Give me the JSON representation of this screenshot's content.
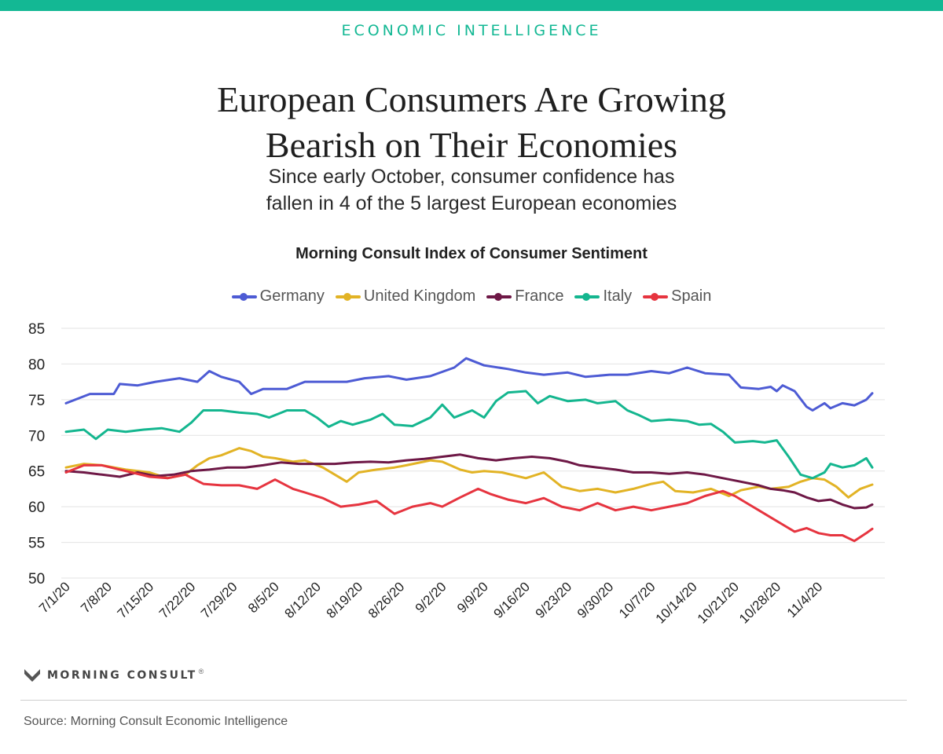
{
  "header": {
    "section_label": "ECONOMIC INTELLIGENCE",
    "title_line1": "European Consumers Are Growing",
    "title_line2": "Bearish on Their Economies",
    "subtitle_line1": "Since early October, consumer confidence has",
    "subtitle_line2": "fallen in 4 of the 5 largest European economies",
    "accent_color": "#13b894"
  },
  "chart_data": {
    "type": "line",
    "title": "Morning Consult Index of Consumer Sentiment",
    "xlabel": "",
    "ylabel": "",
    "ylim": [
      50,
      85
    ],
    "yticks": [
      50,
      55,
      60,
      65,
      70,
      75,
      80,
      85
    ],
    "grid": true,
    "legend_position": "top",
    "x_tick_labels": [
      "7/1/20",
      "7/8/20",
      "7/15/20",
      "7/22/20",
      "7/29/20",
      "8/5/20",
      "8/12/20",
      "8/19/20",
      "8/26/20",
      "9/2/20",
      "9/9/20",
      "9/16/20",
      "9/23/20",
      "9/30/20",
      "10/7/20",
      "10/14/20",
      "10/21/20",
      "10/28/20",
      "11/4/20"
    ],
    "x_start_day": 0,
    "x_end_day": 130,
    "series": [
      {
        "name": "Germany",
        "color": "#4d5bd4",
        "points": [
          [
            0,
            74.5
          ],
          [
            4,
            75.8
          ],
          [
            8,
            75.8
          ],
          [
            9,
            77.2
          ],
          [
            12,
            77.0
          ],
          [
            15,
            77.5
          ],
          [
            19,
            78.0
          ],
          [
            22,
            77.5
          ],
          [
            24,
            79.0
          ],
          [
            26,
            78.2
          ],
          [
            29,
            77.5
          ],
          [
            31,
            75.8
          ],
          [
            33,
            76.5
          ],
          [
            37,
            76.5
          ],
          [
            40,
            77.5
          ],
          [
            43,
            77.5
          ],
          [
            47,
            77.5
          ],
          [
            50,
            78.0
          ],
          [
            54,
            78.3
          ],
          [
            57,
            77.8
          ],
          [
            61,
            78.3
          ],
          [
            65,
            79.5
          ],
          [
            67,
            80.8
          ],
          [
            70,
            79.8
          ],
          [
            74,
            79.3
          ],
          [
            77,
            78.8
          ],
          [
            80,
            78.5
          ],
          [
            84,
            78.8
          ],
          [
            87,
            78.2
          ],
          [
            91,
            78.5
          ],
          [
            94,
            78.5
          ],
          [
            98,
            79.0
          ],
          [
            101,
            78.7
          ],
          [
            104,
            79.5
          ],
          [
            107,
            78.7
          ],
          [
            111,
            78.5
          ],
          [
            113,
            76.7
          ],
          [
            116,
            76.5
          ],
          [
            118,
            76.8
          ],
          [
            119,
            76.2
          ],
          [
            120,
            77.0
          ],
          [
            122,
            76.2
          ],
          [
            124,
            74.0
          ],
          [
            125,
            73.5
          ],
          [
            127,
            74.5
          ],
          [
            128,
            73.8
          ],
          [
            130,
            74.5
          ],
          [
            132,
            74.2
          ],
          [
            134,
            75.0
          ],
          [
            135,
            75.9
          ]
        ]
      },
      {
        "name": "United Kingdom",
        "color": "#e2b325",
        "points": [
          [
            0,
            65.5
          ],
          [
            3,
            66.0
          ],
          [
            6,
            65.8
          ],
          [
            10,
            65.2
          ],
          [
            14,
            64.8
          ],
          [
            17,
            64.0
          ],
          [
            20,
            64.5
          ],
          [
            22,
            65.8
          ],
          [
            24,
            66.8
          ],
          [
            26,
            67.2
          ],
          [
            29,
            68.2
          ],
          [
            31,
            67.8
          ],
          [
            33,
            67.0
          ],
          [
            35,
            66.8
          ],
          [
            38,
            66.3
          ],
          [
            40,
            66.5
          ],
          [
            43,
            65.5
          ],
          [
            47,
            63.5
          ],
          [
            49,
            64.8
          ],
          [
            52,
            65.2
          ],
          [
            55,
            65.5
          ],
          [
            57,
            65.8
          ],
          [
            61,
            66.5
          ],
          [
            63,
            66.3
          ],
          [
            66,
            65.2
          ],
          [
            68,
            64.8
          ],
          [
            70,
            65.0
          ],
          [
            73,
            64.8
          ],
          [
            77,
            64.0
          ],
          [
            80,
            64.8
          ],
          [
            83,
            62.8
          ],
          [
            86,
            62.2
          ],
          [
            89,
            62.5
          ],
          [
            92,
            62.0
          ],
          [
            95,
            62.5
          ],
          [
            98,
            63.2
          ],
          [
            100,
            63.5
          ],
          [
            102,
            62.2
          ],
          [
            105,
            62.0
          ],
          [
            108,
            62.5
          ],
          [
            111,
            61.5
          ],
          [
            113,
            62.3
          ],
          [
            116,
            62.8
          ],
          [
            118,
            62.5
          ],
          [
            121,
            62.8
          ],
          [
            123,
            63.5
          ],
          [
            125,
            64.0
          ],
          [
            127,
            63.8
          ],
          [
            129,
            62.8
          ],
          [
            131,
            61.3
          ],
          [
            133,
            62.5
          ],
          [
            135,
            63.1
          ]
        ]
      },
      {
        "name": "France",
        "color": "#6e1846",
        "points": [
          [
            0,
            65.0
          ],
          [
            3,
            64.8
          ],
          [
            6,
            64.5
          ],
          [
            9,
            64.2
          ],
          [
            12,
            64.8
          ],
          [
            15,
            64.3
          ],
          [
            18,
            64.5
          ],
          [
            21,
            65.0
          ],
          [
            24,
            65.2
          ],
          [
            27,
            65.5
          ],
          [
            30,
            65.5
          ],
          [
            33,
            65.8
          ],
          [
            36,
            66.2
          ],
          [
            39,
            66.0
          ],
          [
            42,
            66.0
          ],
          [
            45,
            66.0
          ],
          [
            48,
            66.2
          ],
          [
            51,
            66.3
          ],
          [
            54,
            66.2
          ],
          [
            57,
            66.5
          ],
          [
            60,
            66.7
          ],
          [
            63,
            67.0
          ],
          [
            66,
            67.3
          ],
          [
            69,
            66.8
          ],
          [
            72,
            66.5
          ],
          [
            75,
            66.8
          ],
          [
            78,
            67.0
          ],
          [
            81,
            66.8
          ],
          [
            84,
            66.3
          ],
          [
            86,
            65.8
          ],
          [
            89,
            65.5
          ],
          [
            92,
            65.2
          ],
          [
            95,
            64.8
          ],
          [
            98,
            64.8
          ],
          [
            101,
            64.6
          ],
          [
            104,
            64.8
          ],
          [
            107,
            64.5
          ],
          [
            110,
            64.0
          ],
          [
            113,
            63.5
          ],
          [
            116,
            63.0
          ],
          [
            118,
            62.5
          ],
          [
            120,
            62.3
          ],
          [
            122,
            62.0
          ],
          [
            124,
            61.3
          ],
          [
            126,
            60.8
          ],
          [
            128,
            61.0
          ],
          [
            130,
            60.3
          ],
          [
            132,
            59.8
          ],
          [
            134,
            59.9
          ],
          [
            135,
            60.3
          ]
        ]
      },
      {
        "name": "Italy",
        "color": "#14b68f",
        "points": [
          [
            0,
            70.5
          ],
          [
            3,
            70.8
          ],
          [
            5,
            69.5
          ],
          [
            7,
            70.8
          ],
          [
            10,
            70.5
          ],
          [
            13,
            70.8
          ],
          [
            16,
            71.0
          ],
          [
            19,
            70.5
          ],
          [
            21,
            71.8
          ],
          [
            23,
            73.5
          ],
          [
            26,
            73.5
          ],
          [
            29,
            73.2
          ],
          [
            32,
            73.0
          ],
          [
            34,
            72.5
          ],
          [
            37,
            73.5
          ],
          [
            40,
            73.5
          ],
          [
            42,
            72.5
          ],
          [
            44,
            71.2
          ],
          [
            46,
            72.0
          ],
          [
            48,
            71.5
          ],
          [
            51,
            72.2
          ],
          [
            53,
            73.0
          ],
          [
            55,
            71.5
          ],
          [
            58,
            71.3
          ],
          [
            61,
            72.5
          ],
          [
            63,
            74.3
          ],
          [
            65,
            72.5
          ],
          [
            68,
            73.5
          ],
          [
            70,
            72.5
          ],
          [
            72,
            74.8
          ],
          [
            74,
            76.0
          ],
          [
            77,
            76.2
          ],
          [
            79,
            74.5
          ],
          [
            81,
            75.5
          ],
          [
            84,
            74.8
          ],
          [
            87,
            75.0
          ],
          [
            89,
            74.5
          ],
          [
            92,
            74.8
          ],
          [
            94,
            73.5
          ],
          [
            96,
            72.8
          ],
          [
            98,
            72.0
          ],
          [
            101,
            72.2
          ],
          [
            104,
            72.0
          ],
          [
            106,
            71.5
          ],
          [
            108,
            71.6
          ],
          [
            110,
            70.5
          ],
          [
            112,
            69.0
          ],
          [
            115,
            69.2
          ],
          [
            117,
            69.0
          ],
          [
            119,
            69.3
          ],
          [
            121,
            67.0
          ],
          [
            123,
            64.5
          ],
          [
            125,
            64.0
          ],
          [
            127,
            64.8
          ],
          [
            128,
            66.0
          ],
          [
            130,
            65.5
          ],
          [
            132,
            65.8
          ],
          [
            134,
            66.8
          ],
          [
            135,
            65.5
          ]
        ]
      },
      {
        "name": "Spain",
        "color": "#e6343f",
        "points": [
          [
            0,
            64.8
          ],
          [
            3,
            65.8
          ],
          [
            6,
            65.8
          ],
          [
            10,
            65.0
          ],
          [
            14,
            64.2
          ],
          [
            17,
            64.0
          ],
          [
            20,
            64.5
          ],
          [
            23,
            63.2
          ],
          [
            26,
            63.0
          ],
          [
            29,
            63.0
          ],
          [
            32,
            62.5
          ],
          [
            35,
            63.8
          ],
          [
            38,
            62.5
          ],
          [
            40,
            62.0
          ],
          [
            43,
            61.2
          ],
          [
            46,
            60.0
          ],
          [
            49,
            60.3
          ],
          [
            52,
            60.8
          ],
          [
            55,
            59.0
          ],
          [
            58,
            60.0
          ],
          [
            61,
            60.5
          ],
          [
            63,
            60.0
          ],
          [
            66,
            61.3
          ],
          [
            69,
            62.5
          ],
          [
            71,
            61.8
          ],
          [
            74,
            61.0
          ],
          [
            77,
            60.5
          ],
          [
            80,
            61.2
          ],
          [
            83,
            60.0
          ],
          [
            86,
            59.5
          ],
          [
            89,
            60.5
          ],
          [
            92,
            59.5
          ],
          [
            95,
            60.0
          ],
          [
            98,
            59.5
          ],
          [
            101,
            60.0
          ],
          [
            104,
            60.5
          ],
          [
            107,
            61.5
          ],
          [
            110,
            62.2
          ],
          [
            112,
            61.5
          ],
          [
            114,
            60.5
          ],
          [
            116,
            59.5
          ],
          [
            118,
            58.5
          ],
          [
            120,
            57.5
          ],
          [
            122,
            56.5
          ],
          [
            124,
            57.0
          ],
          [
            126,
            56.3
          ],
          [
            128,
            56.0
          ],
          [
            130,
            56.0
          ],
          [
            132,
            55.2
          ],
          [
            134,
            56.3
          ],
          [
            135,
            56.9
          ]
        ]
      }
    ]
  },
  "footer": {
    "logo_text": "MORNING CONSULT",
    "trademark": "®",
    "source": "Source: Morning Consult Economic Intelligence"
  }
}
